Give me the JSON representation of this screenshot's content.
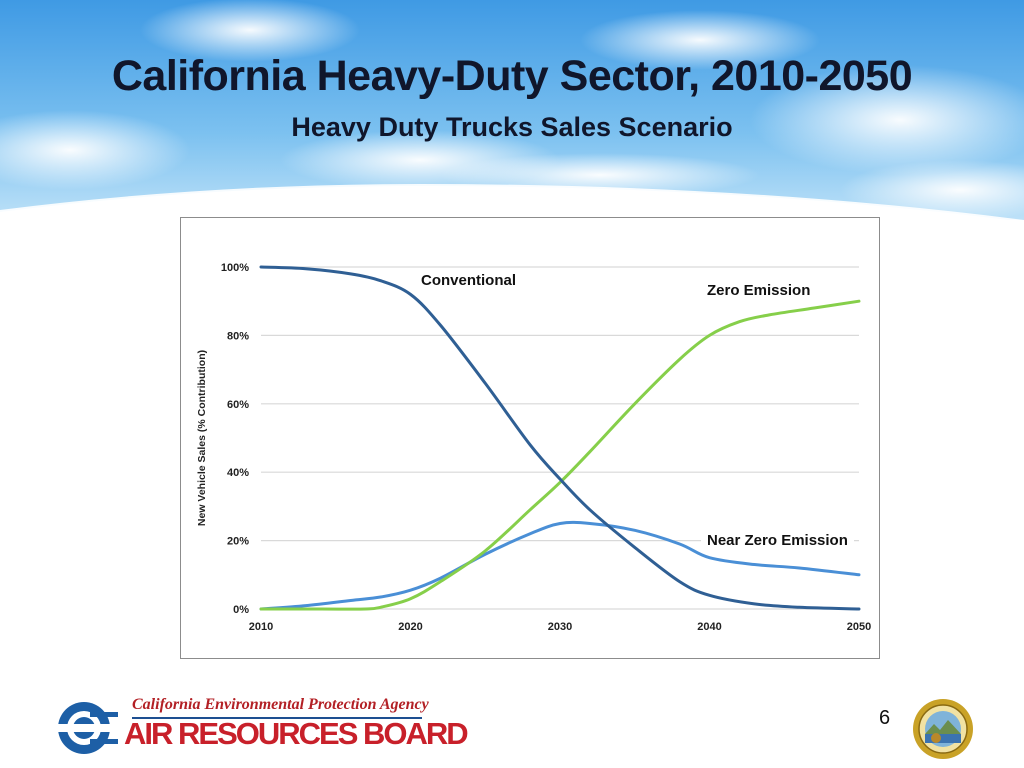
{
  "slide": {
    "title": "California Heavy-Duty Sector, 2010-2050",
    "subtitle": "Heavy Duty Trucks Sales Scenario",
    "page_number": "6"
  },
  "logo": {
    "agency": "California Environmental Protection Agency",
    "board": "AIR RESOURCES BOARD"
  },
  "colors": {
    "conventional": "#2f5f94",
    "near_zero": "#4a8fd6",
    "zero": "#86cf4a",
    "grid": "#d9d9d9"
  },
  "chart_data": {
    "type": "line",
    "ylabel": "New Vehicle Sales (% Contribution)",
    "xlim": [
      2010,
      2050
    ],
    "ylim": [
      0,
      100
    ],
    "x_ticks": [
      "2010",
      "2020",
      "2030",
      "2040",
      "2050"
    ],
    "y_ticks": [
      "0%",
      "20%",
      "40%",
      "60%",
      "80%",
      "100%"
    ],
    "grid": true,
    "series": [
      {
        "name": "Conventional",
        "color_key": "conventional",
        "x": [
          2010,
          2013,
          2016,
          2018,
          2020,
          2022,
          2025,
          2028,
          2030,
          2032,
          2035,
          2038,
          2040,
          2043,
          2046,
          2050
        ],
        "y": [
          100,
          99.5,
          98,
          96,
          92,
          83,
          66,
          48,
          38,
          29,
          18,
          8,
          4,
          1.5,
          0.5,
          0
        ]
      },
      {
        "name": "Near Zero Emission",
        "color_key": "near_zero",
        "x": [
          2010,
          2013,
          2016,
          2018,
          2020,
          2022,
          2025,
          2028,
          2030,
          2032,
          2035,
          2038,
          2040,
          2043,
          2046,
          2050
        ],
        "y": [
          0,
          1,
          2.5,
          3.5,
          5.5,
          9,
          16,
          22,
          25,
          25,
          23,
          19,
          15,
          13,
          12,
          10
        ]
      },
      {
        "name": "Zero Emission",
        "color_key": "zero",
        "x": [
          2010,
          2014,
          2017,
          2018,
          2020,
          2022,
          2025,
          2028,
          2030,
          2032,
          2035,
          2038,
          2040,
          2042,
          2044,
          2047,
          2050
        ],
        "y": [
          0,
          0,
          0,
          0.5,
          3,
          8,
          17,
          29,
          37,
          46,
          60,
          73,
          80,
          84,
          86,
          88,
          90
        ]
      }
    ],
    "annotations": [
      "Conventional",
      "Zero Emission",
      "Near Zero Emission"
    ]
  }
}
